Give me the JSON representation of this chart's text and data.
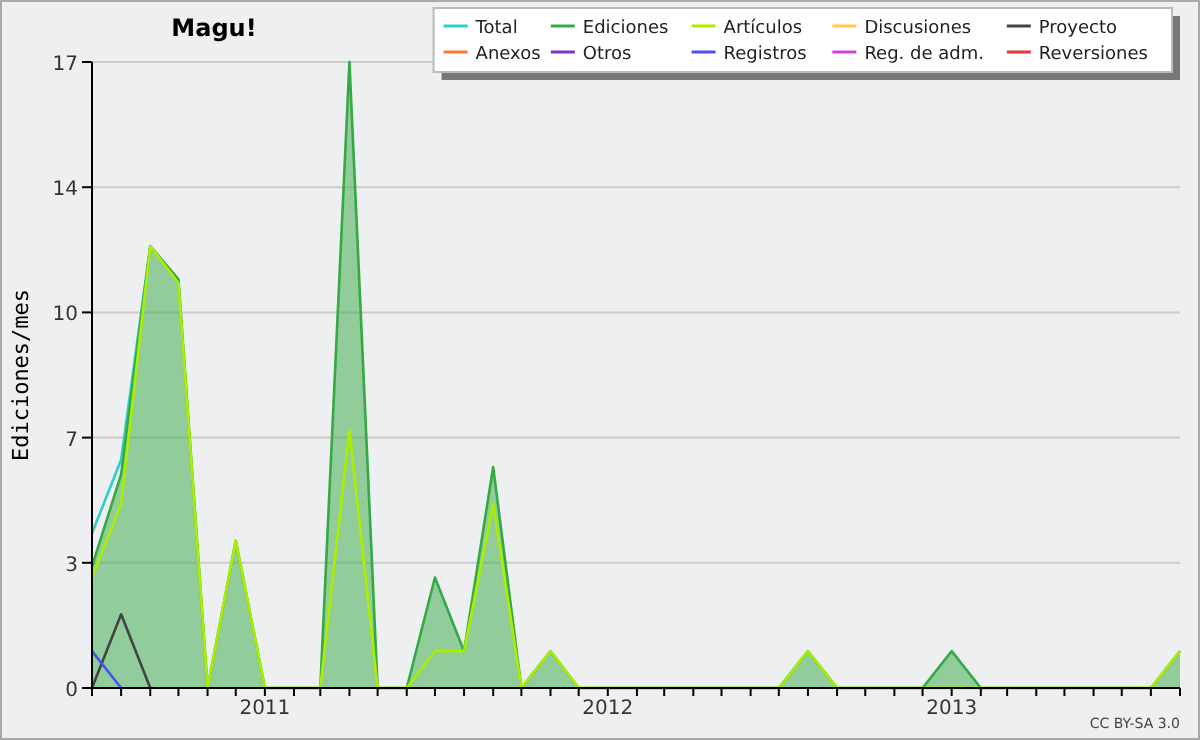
{
  "chart_data": {
    "type": "line",
    "title": "Magu!",
    "ylabel": "Ediciones/mes",
    "annotations": [
      "CC BY-SA 3.0"
    ],
    "x": [
      "2010-07",
      "2010-08",
      "2010-09",
      "2010-10",
      "2010-11",
      "2010-12",
      "2011-01",
      "2011-02",
      "2011-03",
      "2011-04",
      "2011-05",
      "2011-06",
      "2011-07",
      "2011-08",
      "2011-09",
      "2011-10",
      "2011-11",
      "2011-12",
      "2012-01",
      "2012-02",
      "2012-03",
      "2012-04",
      "2012-05",
      "2012-06",
      "2012-07",
      "2012-08",
      "2012-09",
      "2012-10",
      "2012-11",
      "2012-12",
      "2013-01",
      "2013-02",
      "2013-03",
      "2013-04",
      "2013-05",
      "2013-06",
      "2013-07",
      "2013-08",
      "2013-09"
    ],
    "xlim": [
      "2010-07",
      "2013-09"
    ],
    "xticks": [
      {
        "value": "2010-07",
        "label": null
      },
      {
        "value": "2010-08",
        "label": null
      },
      {
        "value": "2010-09",
        "label": null
      },
      {
        "value": "2010-10",
        "label": null
      },
      {
        "value": "2010-11",
        "label": null
      },
      {
        "value": "2010-12",
        "label": null
      },
      {
        "value": "2011-01",
        "label": "2011"
      },
      {
        "value": "2011-02",
        "label": null
      },
      {
        "value": "2011-03",
        "label": null
      },
      {
        "value": "2011-04",
        "label": null
      },
      {
        "value": "2011-05",
        "label": null
      },
      {
        "value": "2011-06",
        "label": null
      },
      {
        "value": "2011-07",
        "label": null
      },
      {
        "value": "2011-08",
        "label": null
      },
      {
        "value": "2011-09",
        "label": null
      },
      {
        "value": "2011-10",
        "label": null
      },
      {
        "value": "2011-11",
        "label": null
      },
      {
        "value": "2011-12",
        "label": null
      },
      {
        "value": "2012-01",
        "label": "2012"
      },
      {
        "value": "2012-02",
        "label": null
      },
      {
        "value": "2012-03",
        "label": null
      },
      {
        "value": "2012-04",
        "label": null
      },
      {
        "value": "2012-05",
        "label": null
      },
      {
        "value": "2012-06",
        "label": null
      },
      {
        "value": "2012-07",
        "label": null
      },
      {
        "value": "2012-08",
        "label": null
      },
      {
        "value": "2012-09",
        "label": null
      },
      {
        "value": "2012-10",
        "label": null
      },
      {
        "value": "2012-11",
        "label": null
      },
      {
        "value": "2012-12",
        "label": null
      },
      {
        "value": "2013-01",
        "label": "2013"
      },
      {
        "value": "2013-02",
        "label": null
      },
      {
        "value": "2013-03",
        "label": null
      },
      {
        "value": "2013-04",
        "label": null
      },
      {
        "value": "2013-05",
        "label": null
      },
      {
        "value": "2013-06",
        "label": null
      },
      {
        "value": "2013-07",
        "label": null
      },
      {
        "value": "2013-08",
        "label": null
      },
      {
        "value": "2013-09",
        "label": null
      }
    ],
    "ylim": [
      0,
      17
    ],
    "yticks": [
      0,
      {
        "value": 3.4,
        "label": "3"
      },
      {
        "value": 6.8,
        "label": "7"
      },
      {
        "value": 10.2,
        "label": "10"
      },
      {
        "value": 13.6,
        "label": "14"
      },
      17
    ],
    "grid": "y",
    "legend": "top right",
    "series": [
      {
        "name": "Total",
        "color": "#33cccc",
        "values": [
          4.2,
          6.2,
          12,
          null,
          null,
          null,
          null,
          null,
          null,
          null,
          null,
          null,
          null,
          null,
          null,
          null,
          null,
          null,
          null,
          null,
          null,
          null,
          null,
          null,
          null,
          null,
          null,
          null,
          null,
          null,
          null,
          null,
          null,
          null,
          null,
          null,
          null,
          null,
          null
        ]
      },
      {
        "name": "Ediciones",
        "type": "area",
        "color": "#33aa44",
        "values": [
          3.3,
          5.8,
          12,
          11.1,
          0,
          4,
          0,
          0,
          0,
          17,
          0,
          0,
          3,
          1,
          6,
          0,
          1,
          0,
          0,
          0,
          0,
          0,
          0,
          0,
          0,
          1,
          0,
          0,
          0,
          0,
          1,
          0,
          0,
          0,
          0,
          0,
          0,
          0,
          1
        ]
      },
      {
        "name": "Artículos",
        "color": "#aaee00",
        "values": [
          3,
          5,
          12,
          11,
          0,
          4,
          0,
          0,
          0,
          7,
          0,
          0,
          1,
          1,
          5,
          0,
          1,
          0,
          0,
          0,
          0,
          0,
          0,
          0,
          0,
          1,
          0,
          0,
          0,
          0,
          0,
          0,
          0,
          0,
          0,
          0,
          0,
          0,
          1
        ]
      },
      {
        "name": "Discusiones",
        "color": "#ffcc44",
        "values": [
          null,
          null,
          null,
          null,
          null,
          null,
          null,
          null,
          null,
          null,
          null,
          null,
          null,
          null,
          null,
          null,
          null,
          null,
          null,
          null,
          null,
          null,
          null,
          null,
          null,
          null,
          null,
          null,
          null,
          null,
          null,
          null,
          null,
          null,
          null,
          null,
          null,
          null,
          null
        ]
      },
      {
        "name": "Proyecto",
        "color": "#444444",
        "values": [
          0,
          2,
          0,
          null,
          null,
          null,
          null,
          null,
          null,
          null,
          null,
          null,
          null,
          null,
          null,
          null,
          null,
          null,
          null,
          null,
          null,
          null,
          null,
          null,
          null,
          null,
          null,
          null,
          null,
          null,
          null,
          null,
          null,
          null,
          null,
          null,
          null,
          null,
          null
        ]
      },
      {
        "name": "Anexos",
        "color": "#ff7733",
        "values": [
          null,
          null,
          null,
          null,
          null,
          null,
          null,
          null,
          null,
          null,
          null,
          null,
          null,
          null,
          null,
          null,
          null,
          null,
          null,
          null,
          null,
          null,
          null,
          null,
          null,
          null,
          null,
          null,
          null,
          null,
          null,
          null,
          null,
          null,
          null,
          null,
          null,
          null,
          null
        ]
      },
      {
        "name": "Otros",
        "color": "#7733cc",
        "values": [
          null,
          null,
          null,
          null,
          null,
          null,
          null,
          null,
          null,
          null,
          null,
          null,
          null,
          null,
          null,
          null,
          null,
          null,
          null,
          null,
          null,
          null,
          null,
          null,
          null,
          null,
          null,
          null,
          null,
          null,
          null,
          null,
          null,
          null,
          null,
          null,
          null,
          null,
          null
        ]
      },
      {
        "name": "Registros",
        "color": "#4455ee",
        "values": [
          1,
          0,
          null,
          null,
          null,
          null,
          null,
          null,
          null,
          null,
          null,
          null,
          null,
          null,
          null,
          null,
          null,
          null,
          null,
          null,
          null,
          null,
          null,
          null,
          null,
          null,
          null,
          null,
          null,
          null,
          null,
          null,
          null,
          null,
          null,
          null,
          null,
          null,
          null
        ]
      },
      {
        "name": "Reg. de adm.",
        "color": "#cc44dd",
        "values": [
          null,
          null,
          null,
          null,
          null,
          null,
          null,
          null,
          null,
          null,
          null,
          null,
          null,
          null,
          null,
          null,
          null,
          null,
          null,
          null,
          null,
          null,
          null,
          null,
          null,
          null,
          null,
          null,
          null,
          null,
          null,
          null,
          null,
          null,
          null,
          null,
          null,
          null,
          null
        ]
      },
      {
        "name": "Reversiones",
        "color": "#ee3333",
        "values": [
          null,
          null,
          null,
          null,
          null,
          null,
          null,
          null,
          null,
          null,
          null,
          null,
          null,
          null,
          null,
          null,
          null,
          null,
          null,
          null,
          null,
          null,
          null,
          null,
          null,
          null,
          null,
          null,
          null,
          null,
          null,
          null,
          null,
          null,
          null,
          null,
          null,
          null,
          null
        ]
      }
    ]
  }
}
